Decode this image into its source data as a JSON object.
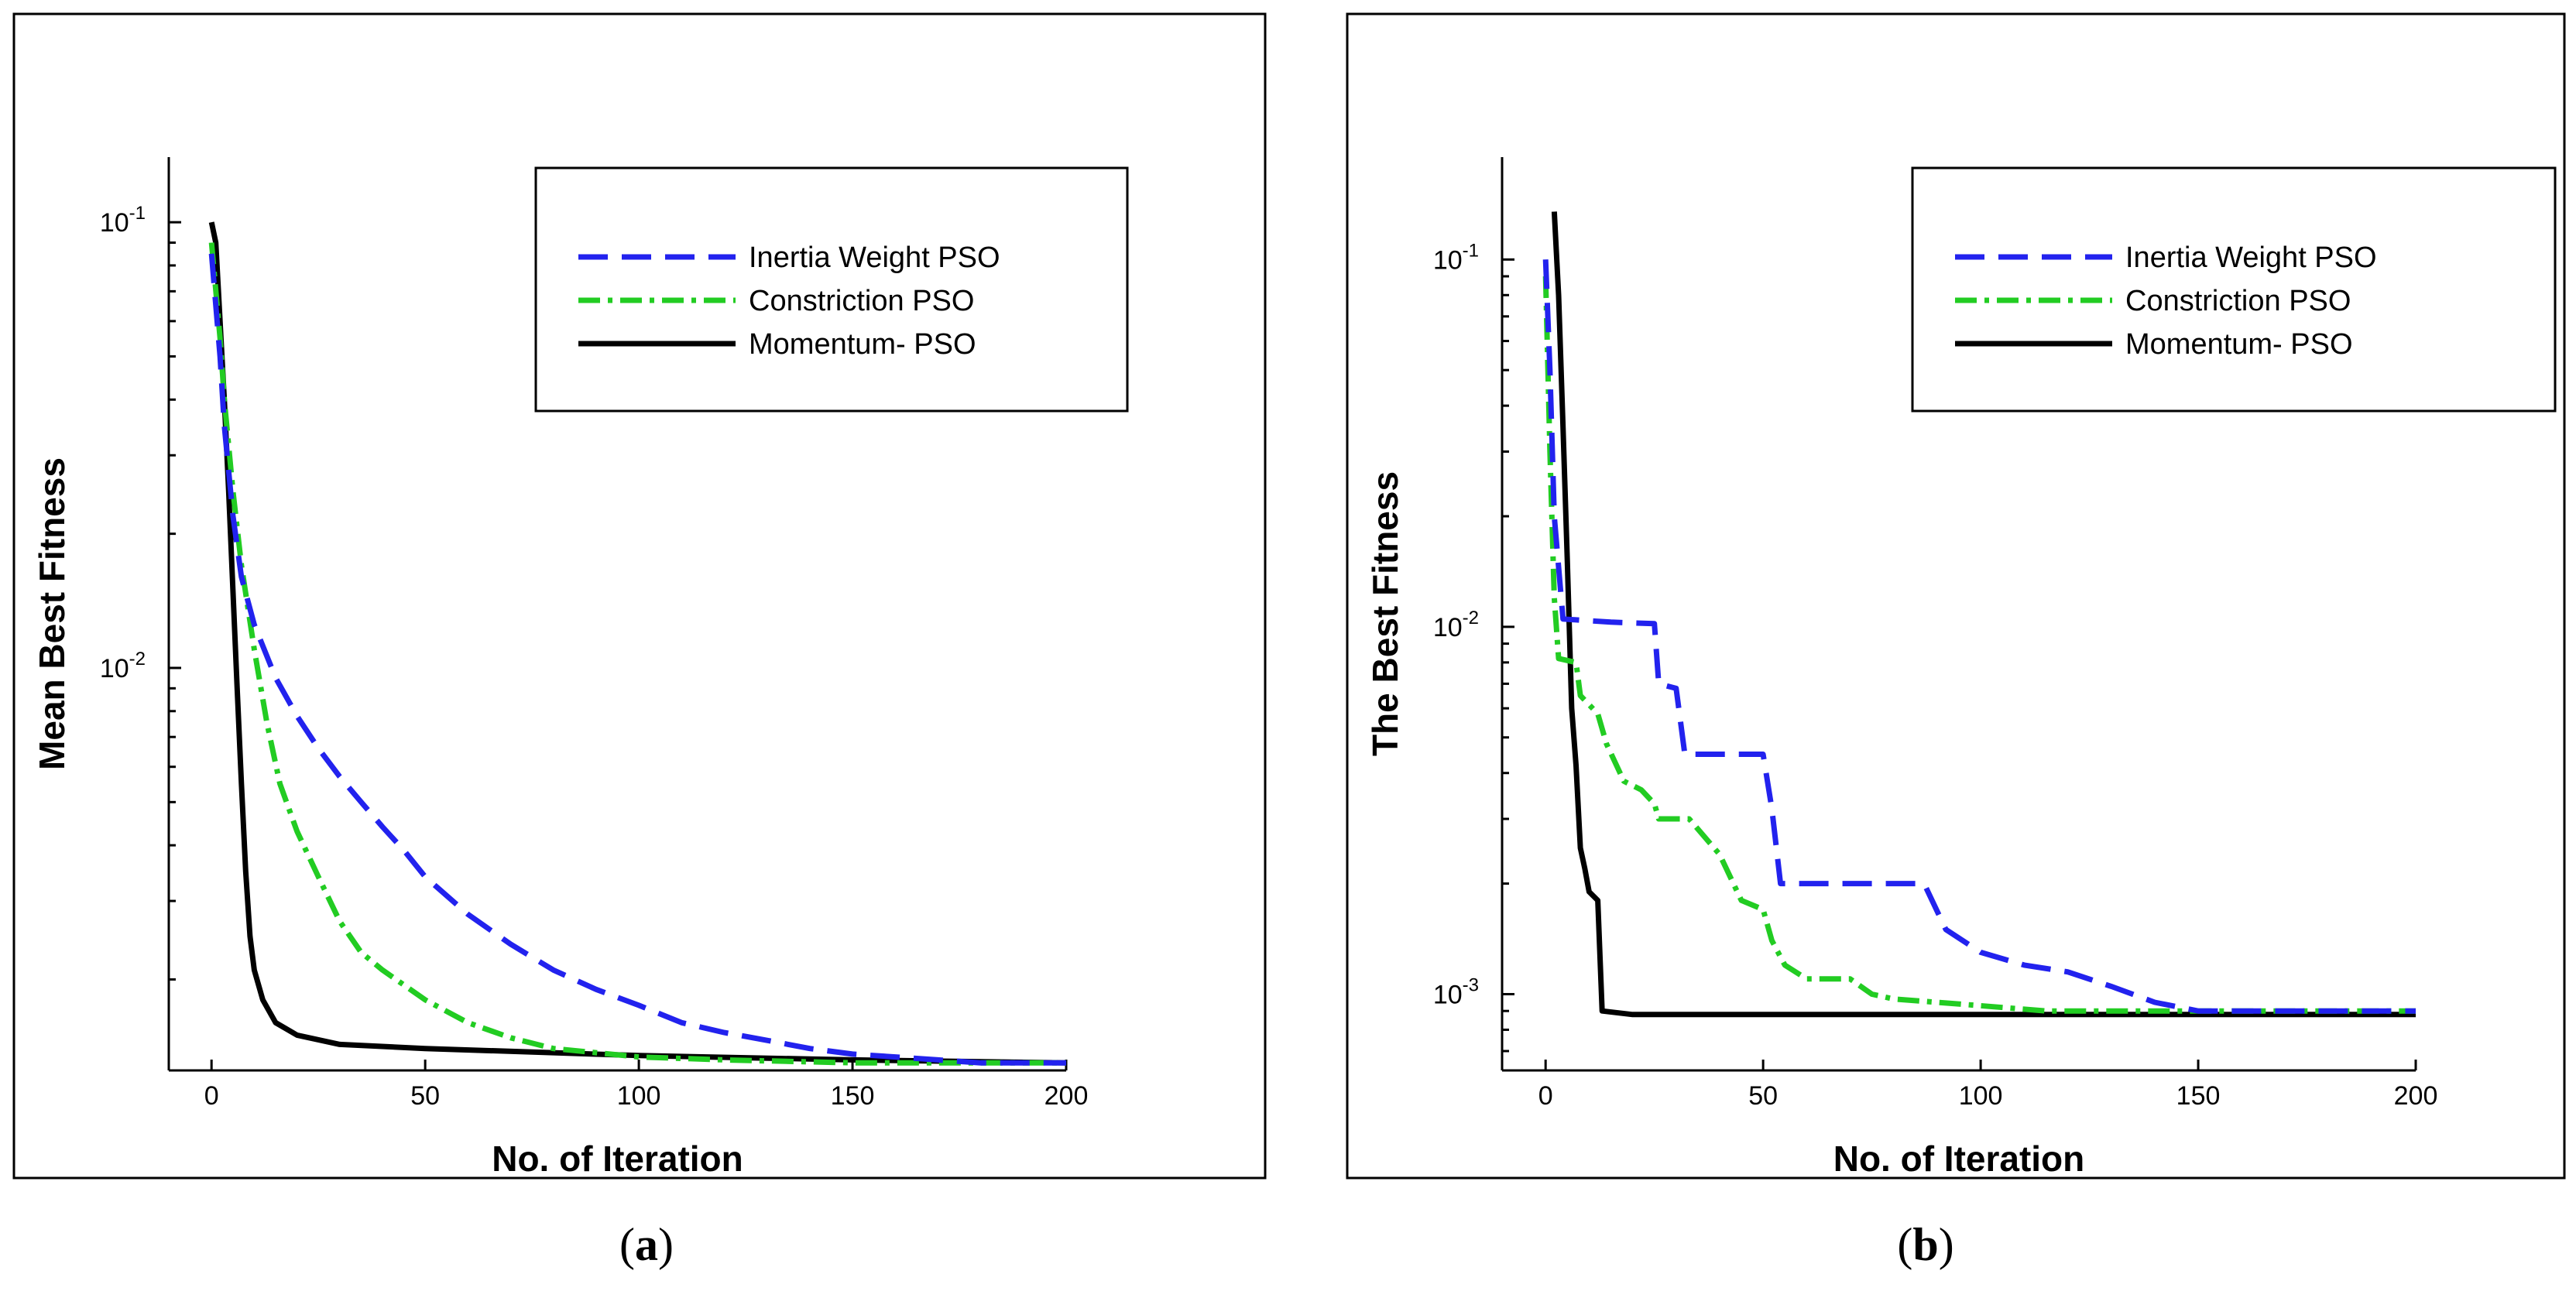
{
  "chart_data": [
    {
      "type": "line",
      "caption": "a",
      "xlabel": "No. of Iteration",
      "ylabel": "Mean Best Fitness",
      "x_ticks": [
        0,
        50,
        100,
        150,
        200
      ],
      "y_ticks": [
        {
          "value": 0.1,
          "label": "10",
          "exp": "-1"
        },
        {
          "value": 0.01,
          "label": "10",
          "exp": "-2"
        }
      ],
      "xlim": [
        -10,
        200
      ],
      "ylim": [
        0.00125,
        0.14
      ],
      "y_scale": "log",
      "grid": false,
      "legend_position": "top-right",
      "series": [
        {
          "name": "Inertia Weight PSO",
          "color": "#2222ee",
          "dash": "dashed",
          "points": [
            [
              0,
              0.085
            ],
            [
              2,
              0.05
            ],
            [
              3,
              0.035
            ],
            [
              5,
              0.022
            ],
            [
              7,
              0.016
            ],
            [
              10,
              0.0125
            ],
            [
              15,
              0.0095
            ],
            [
              20,
              0.0078
            ],
            [
              25,
              0.0066
            ],
            [
              30,
              0.0057
            ],
            [
              35,
              0.005
            ],
            [
              40,
              0.0044
            ],
            [
              45,
              0.0039
            ],
            [
              50,
              0.0034
            ],
            [
              60,
              0.0028
            ],
            [
              70,
              0.0024
            ],
            [
              80,
              0.0021
            ],
            [
              90,
              0.0019
            ],
            [
              100,
              0.00175
            ],
            [
              110,
              0.0016
            ],
            [
              120,
              0.00152
            ],
            [
              130,
              0.00146
            ],
            [
              140,
              0.0014
            ],
            [
              150,
              0.00136
            ],
            [
              160,
              0.00134
            ],
            [
              170,
              0.00132
            ],
            [
              180,
              0.0013
            ],
            [
              190,
              0.0013
            ],
            [
              200,
              0.0013
            ]
          ]
        },
        {
          "name": "Constriction PSO",
          "color": "#22cc22",
          "dash": "dashdot",
          "points": [
            [
              0,
              0.09
            ],
            [
              2,
              0.055
            ],
            [
              3,
              0.04
            ],
            [
              5,
              0.025
            ],
            [
              7,
              0.017
            ],
            [
              10,
              0.011
            ],
            [
              13,
              0.0075
            ],
            [
              16,
              0.0055
            ],
            [
              20,
              0.0043
            ],
            [
              25,
              0.0034
            ],
            [
              30,
              0.0027
            ],
            [
              35,
              0.0023
            ],
            [
              40,
              0.0021
            ],
            [
              50,
              0.0018
            ],
            [
              60,
              0.0016
            ],
            [
              70,
              0.00148
            ],
            [
              80,
              0.0014
            ],
            [
              90,
              0.00137
            ],
            [
              100,
              0.00134
            ],
            [
              120,
              0.00132
            ],
            [
              150,
              0.0013
            ],
            [
              200,
              0.0013
            ]
          ]
        },
        {
          "name": "Momentum- PSO",
          "color": "#000000",
          "dash": "solid",
          "points": [
            [
              0,
              0.1
            ],
            [
              1,
              0.09
            ],
            [
              2,
              0.06
            ],
            [
              3,
              0.04
            ],
            [
              4,
              0.025
            ],
            [
              5,
              0.015
            ],
            [
              6,
              0.009
            ],
            [
              7,
              0.0055
            ],
            [
              8,
              0.0035
            ],
            [
              9,
              0.0025
            ],
            [
              10,
              0.0021
            ],
            [
              12,
              0.0018
            ],
            [
              15,
              0.0016
            ],
            [
              20,
              0.0015
            ],
            [
              30,
              0.00143
            ],
            [
              50,
              0.0014
            ],
            [
              100,
              0.00135
            ],
            [
              150,
              0.00132
            ],
            [
              200,
              0.0013
            ]
          ]
        }
      ]
    },
    {
      "type": "line",
      "caption": "b",
      "xlabel": "No. of Iteration",
      "ylabel": "The Best Fitness",
      "x_ticks": [
        0,
        50,
        100,
        150,
        200
      ],
      "y_ticks": [
        {
          "value": 0.1,
          "label": "10",
          "exp": "-1"
        },
        {
          "value": 0.01,
          "label": "10",
          "exp": "-2"
        },
        {
          "value": 0.001,
          "label": "10",
          "exp": "-3"
        }
      ],
      "xlim": [
        -10,
        200
      ],
      "ylim": [
        0.00062,
        0.19
      ],
      "y_scale": "log",
      "grid": false,
      "legend_position": "top-right",
      "series": [
        {
          "name": "Inertia Weight PSO",
          "color": "#2222ee",
          "dash": "dashed",
          "points": [
            [
              0,
              0.1
            ],
            [
              1,
              0.05
            ],
            [
              2,
              0.02
            ],
            [
              4,
              0.0105
            ],
            [
              15,
              0.0103
            ],
            [
              25,
              0.0102
            ],
            [
              26,
              0.007
            ],
            [
              30,
              0.0068
            ],
            [
              32,
              0.0045
            ],
            [
              50,
              0.0045
            ],
            [
              52,
              0.0032
            ],
            [
              54,
              0.002
            ],
            [
              87,
              0.002
            ],
            [
              92,
              0.0015
            ],
            [
              100,
              0.0013
            ],
            [
              110,
              0.0012
            ],
            [
              120,
              0.00115
            ],
            [
              130,
              0.00105
            ],
            [
              140,
              0.00095
            ],
            [
              150,
              0.0009
            ],
            [
              200,
              0.0009
            ]
          ]
        },
        {
          "name": "Constriction PSO",
          "color": "#22cc22",
          "dash": "dashdot",
          "points": [
            [
              0,
              0.09
            ],
            [
              1,
              0.03
            ],
            [
              2,
              0.012
            ],
            [
              3,
              0.0082
            ],
            [
              7,
              0.008
            ],
            [
              8,
              0.0065
            ],
            [
              12,
              0.0058
            ],
            [
              14,
              0.0048
            ],
            [
              18,
              0.0038
            ],
            [
              22,
              0.0036
            ],
            [
              25,
              0.0033
            ],
            [
              26,
              0.003
            ],
            [
              33,
              0.003
            ],
            [
              40,
              0.0024
            ],
            [
              45,
              0.0018
            ],
            [
              50,
              0.0017
            ],
            [
              52,
              0.0014
            ],
            [
              55,
              0.0012
            ],
            [
              60,
              0.0011
            ],
            [
              70,
              0.0011
            ],
            [
              75,
              0.001
            ],
            [
              80,
              0.00097
            ],
            [
              90,
              0.00095
            ],
            [
              100,
              0.00093
            ],
            [
              115,
              0.0009
            ],
            [
              200,
              0.0009
            ]
          ]
        },
        {
          "name": "Momentum- PSO",
          "color": "#000000",
          "dash": "solid",
          "points": [
            [
              2,
              0.135
            ],
            [
              3,
              0.08
            ],
            [
              4,
              0.035
            ],
            [
              5,
              0.015
            ],
            [
              6,
              0.006
            ],
            [
              7,
              0.0042
            ],
            [
              8,
              0.0025
            ],
            [
              9,
              0.0022
            ],
            [
              10,
              0.0019
            ],
            [
              12,
              0.0018
            ],
            [
              13,
              0.0009
            ],
            [
              20,
              0.00088
            ],
            [
              200,
              0.00088
            ]
          ]
        }
      ]
    }
  ]
}
